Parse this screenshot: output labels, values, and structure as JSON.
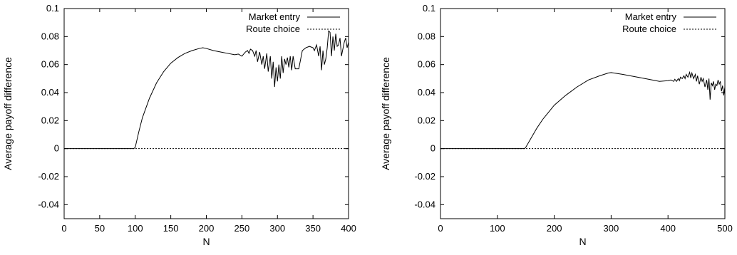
{
  "chart_data": [
    {
      "type": "line",
      "xlabel": "N",
      "ylabel": "Average payoff difference",
      "xlim": [
        0,
        400
      ],
      "ylim": [
        -0.05,
        0.1
      ],
      "xticks": [
        "0",
        "50",
        "100",
        "150",
        "200",
        "250",
        "300",
        "350",
        "400"
      ],
      "yticks": [
        "-0.04",
        "-0.02",
        "0",
        "0.02",
        "0.04",
        "0.06",
        "0.08",
        "0.1"
      ],
      "legend_position": "top-right",
      "series": [
        {
          "name": "Market entry",
          "style": "solid",
          "color": "#000000",
          "x": [
            0,
            50,
            98,
            100,
            105,
            110,
            120,
            130,
            140,
            150,
            160,
            170,
            180,
            190,
            195,
            200,
            210,
            220,
            230,
            240,
            245,
            250,
            255,
            258,
            260,
            262,
            265,
            268,
            270,
            272,
            275,
            278,
            280,
            282,
            285,
            287,
            290,
            292,
            294,
            296,
            298,
            300,
            302,
            304,
            306,
            308,
            310,
            312,
            314,
            316,
            318,
            320,
            322,
            325,
            330,
            335,
            340,
            345,
            350,
            352,
            355,
            358,
            360,
            362,
            364,
            366,
            368,
            370,
            372,
            374,
            376,
            378,
            380,
            382,
            384,
            386,
            388,
            390,
            392,
            394,
            396,
            398,
            400
          ],
          "y": [
            0,
            0,
            0,
            0.001,
            0.012,
            0.022,
            0.036,
            0.047,
            0.055,
            0.061,
            0.065,
            0.068,
            0.07,
            0.0715,
            0.072,
            0.0715,
            0.07,
            0.069,
            0.068,
            0.067,
            0.0675,
            0.066,
            0.069,
            0.07,
            0.068,
            0.071,
            0.07,
            0.066,
            0.07,
            0.062,
            0.069,
            0.06,
            0.066,
            0.057,
            0.068,
            0.055,
            0.066,
            0.05,
            0.062,
            0.044,
            0.058,
            0.048,
            0.06,
            0.05,
            0.066,
            0.054,
            0.064,
            0.06,
            0.065,
            0.058,
            0.066,
            0.056,
            0.066,
            0.057,
            0.057,
            0.07,
            0.072,
            0.073,
            0.072,
            0.07,
            0.074,
            0.066,
            0.073,
            0.056,
            0.07,
            0.06,
            0.064,
            0.072,
            0.084,
            0.083,
            0.066,
            0.08,
            0.07,
            0.082,
            0.073,
            0.074,
            0.079,
            0.066,
            0.071,
            0.076,
            0.079,
            0.072,
            0.076
          ]
        },
        {
          "name": "Route choice",
          "style": "dashed",
          "color": "#000000",
          "x": [
            0,
            400
          ],
          "y": [
            0,
            0
          ]
        }
      ]
    },
    {
      "type": "line",
      "xlabel": "N",
      "ylabel": "Average payoff difference",
      "xlim": [
        0,
        500
      ],
      "ylim": [
        -0.05,
        0.1
      ],
      "xticks": [
        "0",
        "100",
        "200",
        "300",
        "400",
        "500"
      ],
      "yticks": [
        "-0.04",
        "-0.02",
        "0",
        "0.02",
        "0.04",
        "0.06",
        "0.08",
        "0.1"
      ],
      "legend_position": "top-right",
      "series": [
        {
          "name": "Market entry",
          "style": "solid",
          "color": "#000000",
          "x": [
            0,
            100,
            148,
            150,
            160,
            170,
            180,
            190,
            200,
            220,
            240,
            260,
            280,
            295,
            300,
            320,
            340,
            360,
            385,
            400,
            405,
            410,
            412,
            415,
            418,
            420,
            422,
            425,
            428,
            430,
            432,
            435,
            438,
            440,
            442,
            445,
            448,
            450,
            452,
            455,
            458,
            460,
            462,
            465,
            468,
            470,
            472,
            474,
            476,
            478,
            480,
            482,
            484,
            486,
            488,
            490,
            492,
            494,
            496,
            498,
            500
          ],
          "y": [
            0,
            0,
            0,
            0.001,
            0.008,
            0.015,
            0.021,
            0.026,
            0.031,
            0.038,
            0.044,
            0.049,
            0.052,
            0.054,
            0.0543,
            0.053,
            0.0515,
            0.05,
            0.048,
            0.0485,
            0.049,
            0.048,
            0.0495,
            0.048,
            0.05,
            0.0485,
            0.051,
            0.05,
            0.052,
            0.05,
            0.053,
            0.051,
            0.0545,
            0.0505,
            0.054,
            0.05,
            0.053,
            0.048,
            0.052,
            0.046,
            0.051,
            0.048,
            0.05,
            0.044,
            0.049,
            0.042,
            0.05,
            0.035,
            0.047,
            0.045,
            0.048,
            0.042,
            0.046,
            0.045,
            0.049,
            0.046,
            0.048,
            0.041,
            0.045,
            0.038,
            0.044
          ]
        },
        {
          "name": "Route choice",
          "style": "dashed",
          "color": "#000000",
          "x": [
            0,
            500
          ],
          "y": [
            0,
            0
          ]
        }
      ]
    }
  ]
}
